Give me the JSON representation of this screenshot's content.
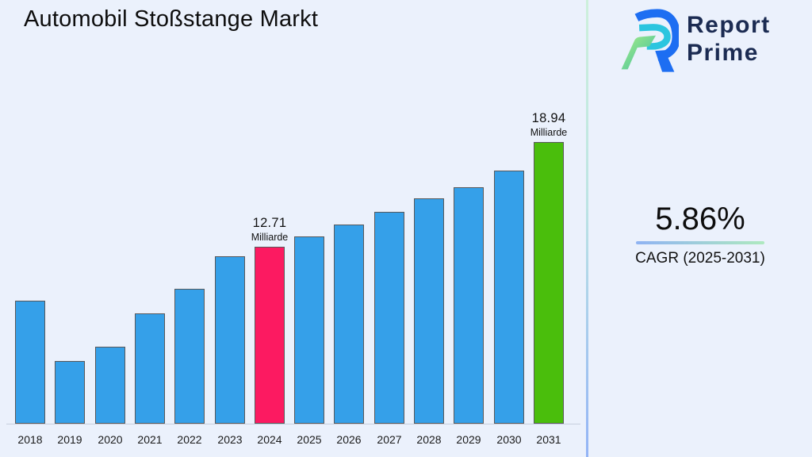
{
  "page": {
    "background": "#EBF1FC"
  },
  "header": {
    "title": "Automobil Stoßstange Markt"
  },
  "logo": {
    "name": "Report Prime",
    "line1": "Report",
    "line2": "Prime"
  },
  "cagr_panel": {
    "value": "5.86%",
    "label": "CAGR (2025-2031)"
  },
  "colors": {
    "background": "#EBF1FC",
    "bar_default": "#35A0E9",
    "bar_2024": "#FC1A61",
    "bar_2031": "#4ABE0C",
    "bar_border": "#58585A",
    "logo_text": "#1B2B52",
    "divider_top": "#CDF0DB",
    "divider_bottom": "#93B4F6",
    "underline_left": "#8FB3F3",
    "underline_right": "#AEE9BF",
    "text": "#0D0D0D"
  },
  "chart_data": {
    "type": "bar",
    "title": "Automobil Stoßstange Markt",
    "unit": "Milliarde",
    "categories": [
      "2018",
      "2019",
      "2020",
      "2021",
      "2022",
      "2023",
      "2024",
      "2025",
      "2026",
      "2027",
      "2028",
      "2029",
      "2030",
      "2031"
    ],
    "values": [
      9.51,
      5.92,
      6.77,
      8.75,
      10.21,
      12.15,
      12.71,
      13.33,
      14.04,
      14.79,
      15.6,
      16.26,
      17.25,
      18.94
    ],
    "labeled_values": {
      "2024": 12.71,
      "2031": 18.94
    },
    "annotations": [
      {
        "category": "2024",
        "value_label": "12.71",
        "unit_label": "Milliarde"
      },
      {
        "category": "2031",
        "value_label": "18.94",
        "unit_label": "Milliarde"
      }
    ],
    "bar_colors": {
      "default": "#35A0E9",
      "2024": "#FC1A61",
      "2031": "#4ABE0C"
    },
    "xlabel": "",
    "ylabel": "",
    "ylim": [
      0,
      20
    ],
    "grid": false,
    "legend": false
  }
}
